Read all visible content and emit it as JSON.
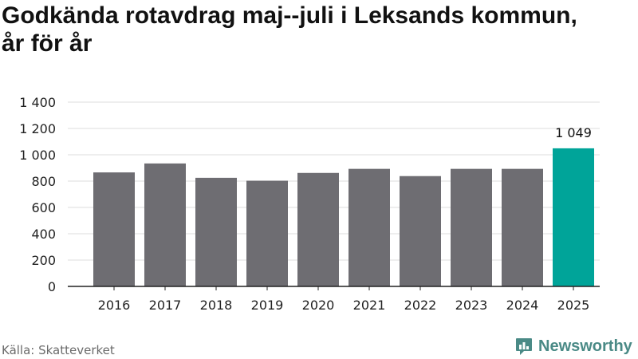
{
  "header": {
    "title_line1": "Godkända rotavdrag maj--juli i Leksands kommun,",
    "title_line2": "år för år"
  },
  "footer": {
    "source": "Källa: Skatteverket",
    "brand": "Newsworthy"
  },
  "colors": {
    "bar": "#6e6d72",
    "highlight": "#00a499",
    "grid": "#dddddd",
    "axis": "#222222",
    "brand": "#4a8a86"
  },
  "chart_data": {
    "type": "bar",
    "title": "Godkända rotavdrag maj--juli i Leksands kommun, år för år",
    "categories": [
      "2016",
      "2017",
      "2018",
      "2019",
      "2020",
      "2021",
      "2022",
      "2023",
      "2024",
      "2025"
    ],
    "values": [
      866,
      934,
      825,
      803,
      862,
      893,
      838,
      893,
      893,
      1049
    ],
    "highlight_index": 9,
    "data_labels": [
      {
        "index": 9,
        "text": "1 049"
      }
    ],
    "ylim": [
      0,
      1400
    ],
    "yticks": [
      0,
      200,
      400,
      600,
      800,
      1000,
      1200,
      1400
    ],
    "ytick_labels": [
      "0",
      "200",
      "400",
      "600",
      "800",
      "1 000",
      "1 200",
      "1 400"
    ],
    "grid": true,
    "legend": "none"
  }
}
